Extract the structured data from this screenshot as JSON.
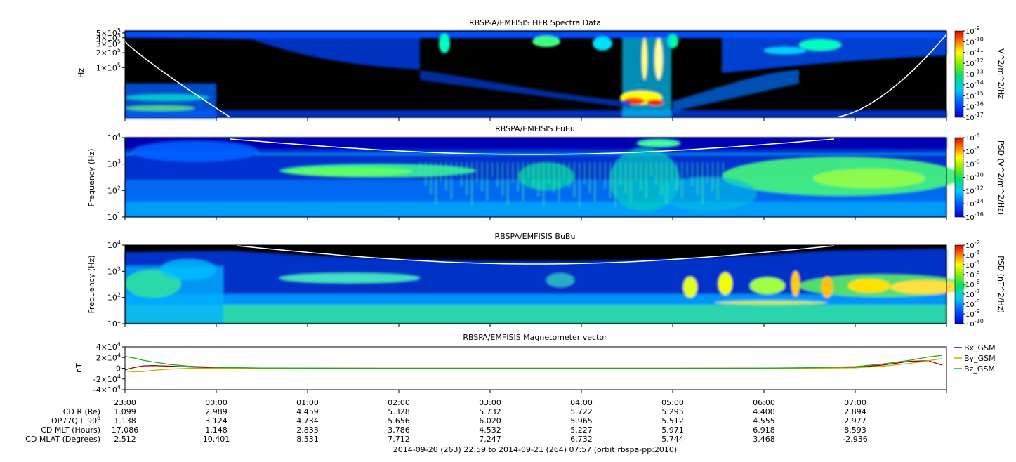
{
  "chart_data": [
    {
      "type": "heatmap",
      "title": "RBSP-A/EMFISIS  HFR Spectra Data",
      "ylabel": "Hz",
      "ylog": true,
      "ylim": [
        10000,
        550000
      ],
      "yticks": [
        {
          "v": 500000,
          "label": "5×10",
          "sup": "5"
        },
        {
          "v": 400000,
          "label": "4×10",
          "sup": "5"
        },
        {
          "v": 300000,
          "label": "3×10",
          "sup": "5"
        },
        {
          "v": 200000,
          "label": "2×10",
          "sup": "5"
        },
        {
          "v": 100000,
          "label": "1×10",
          "sup": "5"
        }
      ],
      "colorbar": {
        "label": "V^2/m^2/Hz",
        "min_exp": -17,
        "max_exp": -9,
        "ticks": [
          {
            "label": "10",
            "sup": "-9"
          },
          {
            "label": "10",
            "sup": "-10"
          },
          {
            "label": "10",
            "sup": "-11"
          },
          {
            "label": "10",
            "sup": "-12"
          },
          {
            "label": "10",
            "sup": "-13"
          },
          {
            "label": "10",
            "sup": "-14"
          },
          {
            "label": "10",
            "sup": "-15"
          },
          {
            "label": "10",
            "sup": "-16"
          },
          {
            "label": "10",
            "sup": "-17"
          }
        ]
      },
      "overlay_line": "white",
      "background": "black"
    },
    {
      "type": "heatmap",
      "title": "RBSPA/EMFISIS  EuEu",
      "ylabel": "Frequency (Hz)",
      "ylog": true,
      "ylim": [
        10,
        10000
      ],
      "yticks": [
        {
          "v": 10000,
          "label": "10",
          "sup": "4"
        },
        {
          "v": 1000,
          "label": "10",
          "sup": "3"
        },
        {
          "v": 100,
          "label": "10",
          "sup": "2"
        },
        {
          "v": 10,
          "label": "10",
          "sup": "1"
        }
      ],
      "colorbar": {
        "label": "PSD (V^2/m^2/Hz)",
        "min_exp": -16,
        "max_exp": -4,
        "ticks": [
          {
            "label": "10",
            "sup": "-4"
          },
          {
            "label": "10",
            "sup": "-6"
          },
          {
            "label": "10",
            "sup": "-8"
          },
          {
            "label": "10",
            "sup": "-10"
          },
          {
            "label": "10",
            "sup": "-12"
          },
          {
            "label": "10",
            "sup": "-14"
          },
          {
            "label": "10",
            "sup": "-16"
          }
        ]
      },
      "overlay_line": "white",
      "background": "black"
    },
    {
      "type": "heatmap",
      "title": "RBSPA/EMFISIS  BuBu",
      "ylabel": "Frequency (Hz)",
      "ylog": true,
      "ylim": [
        10,
        10000
      ],
      "yticks": [
        {
          "v": 10000,
          "label": "10",
          "sup": "4"
        },
        {
          "v": 1000,
          "label": "10",
          "sup": "3"
        },
        {
          "v": 100,
          "label": "10",
          "sup": "2"
        },
        {
          "v": 10,
          "label": "10",
          "sup": "1"
        }
      ],
      "colorbar": {
        "label": "PSD (nT^2/Hz)",
        "min_exp": -10,
        "max_exp": -2,
        "ticks": [
          {
            "label": "10",
            "sup": "-2"
          },
          {
            "label": "10",
            "sup": "-3"
          },
          {
            "label": "10",
            "sup": "-4"
          },
          {
            "label": "10",
            "sup": "-5"
          },
          {
            "label": "10",
            "sup": "-6"
          },
          {
            "label": "10",
            "sup": "-7"
          },
          {
            "label": "10",
            "sup": "-8"
          },
          {
            "label": "10",
            "sup": "-9"
          },
          {
            "label": "10",
            "sup": "-10"
          }
        ]
      },
      "overlay_line": "white",
      "background": "black"
    },
    {
      "type": "line",
      "title": "RBSPA/EMFISIS  Magnetometer vector",
      "ylabel": "nT",
      "ylim": [
        -40000,
        40000
      ],
      "yticks": [
        {
          "v": 40000,
          "label": "4×10",
          "sup": "4"
        },
        {
          "v": 20000,
          "label": "2×10",
          "sup": "4"
        },
        {
          "v": 0,
          "label": "0",
          "sup": ""
        },
        {
          "v": -20000,
          "label": "-2×10",
          "sup": "4"
        },
        {
          "v": -40000,
          "label": "-4×10",
          "sup": "4"
        }
      ],
      "x": [
        0,
        0.1,
        0.2,
        0.3,
        0.5,
        0.7,
        1,
        1.5,
        2,
        3,
        4,
        5,
        6,
        7,
        7.5,
        8,
        8.3,
        8.6,
        8.8,
        8.95
      ],
      "series": [
        {
          "name": "Bx_GSM",
          "color": "#8b0000",
          "values": [
            -3000,
            1500,
            4500,
            5000,
            4000,
            2500,
            1000,
            300,
            100,
            0,
            0,
            0,
            0,
            100,
            500,
            1500,
            6000,
            13000,
            14000,
            6000
          ]
        },
        {
          "name": "By_GSM",
          "color": "#c8a800",
          "values": [
            -5000,
            -6500,
            -6000,
            -4000,
            -1500,
            -300,
            0,
            0,
            0,
            0,
            0,
            0,
            0,
            0,
            100,
            800,
            4000,
            9000,
            14000,
            18000
          ]
        },
        {
          "name": "Bz_GSM",
          "color": "#22aa22",
          "values": [
            22000,
            19000,
            15000,
            12000,
            7000,
            4000,
            1800,
            500,
            200,
            0,
            0,
            0,
            0,
            200,
            1200,
            3000,
            8000,
            15000,
            21000,
            24000
          ]
        }
      ]
    }
  ],
  "x_axis": {
    "ticks": [
      "23:00",
      "00:00",
      "01:00",
      "02:00",
      "03:00",
      "04:00",
      "05:00",
      "06:00",
      "07:00"
    ],
    "rows": [
      {
        "label": "CD R (Re)",
        "values": [
          "1.099",
          "2.989",
          "4.459",
          "5.328",
          "5.732",
          "5.722",
          "5.295",
          "4.400",
          "2.894"
        ]
      },
      {
        "label": "OP77Q L 90",
        "sup": "o",
        "values": [
          "1.138",
          "3.124",
          "4.734",
          "5.656",
          "6.020",
          "5.965",
          "5.512",
          "4.555",
          "2.977"
        ]
      },
      {
        "label": "CD MLT (Hours)",
        "values": [
          "17.086",
          "1.148",
          "2.833",
          "3.786",
          "4.532",
          "5.227",
          "5.971",
          "6.918",
          "8.593"
        ]
      },
      {
        "label": "CD MLAT (Degrees)",
        "values": [
          "2.512",
          "10.401",
          "8.531",
          "7.712",
          "7.247",
          "6.732",
          "5.744",
          "3.468",
          "-2.936"
        ]
      }
    ],
    "footer": "2014-09-20 (263) 22:59 to 2014-09-21 (264) 07:57 (orbit:rbspa-pp:2010)"
  }
}
